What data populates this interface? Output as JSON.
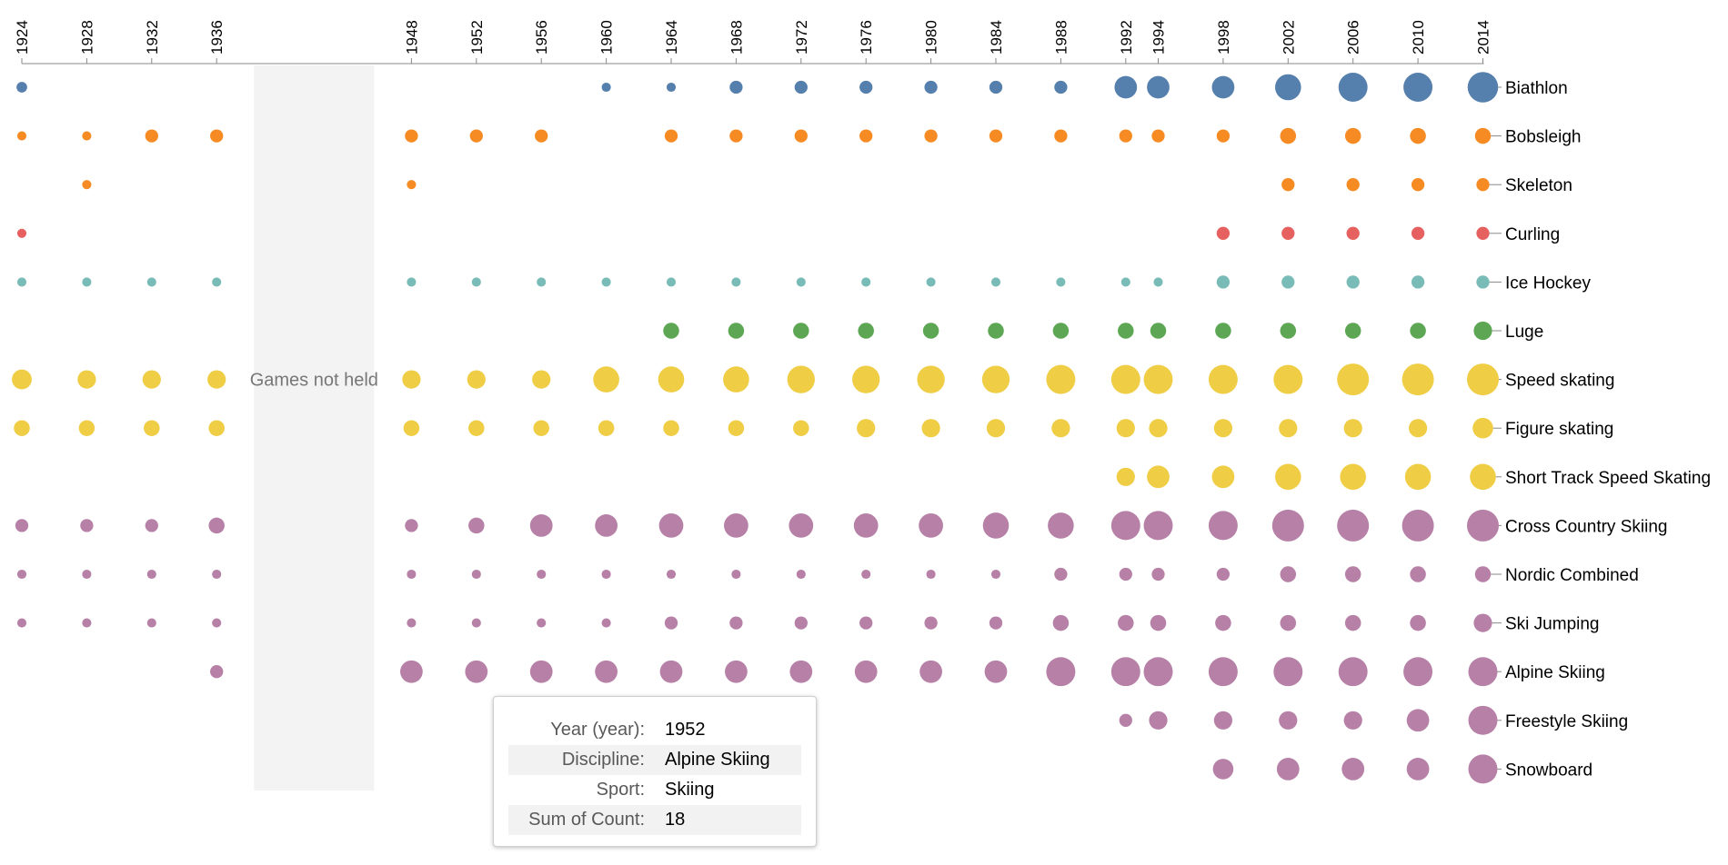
{
  "chart_data": {
    "type": "scatter",
    "years": [
      1924,
      1928,
      1932,
      1936,
      1948,
      1952,
      1956,
      1960,
      1964,
      1968,
      1972,
      1976,
      1980,
      1984,
      1988,
      1992,
      1994,
      1998,
      2002,
      2006,
      2010,
      2014
    ],
    "gap_label": "Games not held",
    "series": [
      {
        "name": "Biathlon",
        "color": "#4c78a8",
        "values": [
          4,
          null,
          null,
          null,
          null,
          null,
          null,
          3,
          3,
          6,
          6,
          6,
          6,
          6,
          6,
          18,
          18,
          18,
          24,
          30,
          30,
          33
        ]
      },
      {
        "name": "Bobsleigh",
        "color": "#f58518",
        "values": [
          3,
          3,
          6,
          6,
          6,
          6,
          6,
          null,
          6,
          6,
          6,
          6,
          6,
          6,
          6,
          6,
          6,
          6,
          9,
          9,
          9,
          9
        ]
      },
      {
        "name": "Skeleton",
        "color": "#f58518",
        "values": [
          null,
          3,
          null,
          null,
          3,
          null,
          null,
          null,
          null,
          null,
          null,
          null,
          null,
          null,
          null,
          null,
          null,
          null,
          6,
          6,
          6,
          6
        ]
      },
      {
        "name": "Curling",
        "color": "#e45756",
        "values": [
          3,
          null,
          null,
          null,
          null,
          null,
          null,
          null,
          null,
          null,
          null,
          null,
          null,
          null,
          null,
          null,
          null,
          6,
          6,
          6,
          6,
          6
        ]
      },
      {
        "name": "Ice Hockey",
        "color": "#72b7b2",
        "values": [
          3,
          3,
          3,
          3,
          3,
          3,
          3,
          3,
          3,
          3,
          3,
          3,
          3,
          3,
          3,
          3,
          3,
          6,
          6,
          6,
          6,
          6
        ]
      },
      {
        "name": "Luge",
        "color": "#54a24b",
        "values": [
          null,
          null,
          null,
          null,
          null,
          null,
          null,
          null,
          9,
          9,
          9,
          9,
          9,
          9,
          9,
          9,
          9,
          9,
          9,
          9,
          9,
          12
        ]
      },
      {
        "name": "Speed skating",
        "color": "#eeca3b",
        "values": [
          14,
          12,
          12,
          12,
          12,
          12,
          12,
          24,
          24,
          24,
          27,
          27,
          27,
          27,
          30,
          30,
          30,
          30,
          30,
          36,
          36,
          36
        ]
      },
      {
        "name": "Figure skating",
        "color": "#eeca3b",
        "values": [
          9,
          9,
          9,
          9,
          9,
          9,
          9,
          9,
          9,
          9,
          9,
          12,
          12,
          12,
          12,
          12,
          12,
          12,
          12,
          12,
          12,
          15
        ]
      },
      {
        "name": "Short Track Speed Skating",
        "color": "#eeca3b",
        "values": [
          null,
          null,
          null,
          null,
          null,
          null,
          null,
          null,
          null,
          null,
          null,
          null,
          null,
          null,
          null,
          12,
          18,
          18,
          24,
          24,
          24,
          24
        ]
      },
      {
        "name": "Cross Country Skiing",
        "color": "#b279a2",
        "values": [
          6,
          6,
          6,
          9,
          6,
          9,
          18,
          18,
          21,
          21,
          21,
          21,
          21,
          24,
          24,
          30,
          30,
          30,
          36,
          36,
          36,
          36
        ]
      },
      {
        "name": "Nordic Combined",
        "color": "#b279a2",
        "values": [
          3,
          3,
          3,
          3,
          3,
          3,
          3,
          3,
          3,
          3,
          3,
          3,
          3,
          3,
          6,
          6,
          6,
          6,
          9,
          9,
          9,
          9
        ]
      },
      {
        "name": "Ski Jumping",
        "color": "#b279a2",
        "values": [
          3,
          3,
          3,
          3,
          3,
          3,
          3,
          3,
          6,
          6,
          6,
          6,
          6,
          6,
          9,
          9,
          9,
          9,
          9,
          9,
          9,
          12
        ]
      },
      {
        "name": "Alpine Skiing",
        "color": "#b279a2",
        "values": [
          null,
          null,
          null,
          6,
          18,
          18,
          18,
          18,
          18,
          18,
          18,
          18,
          18,
          18,
          30,
          30,
          30,
          30,
          30,
          30,
          30,
          30
        ]
      },
      {
        "name": "Freestyle Skiing",
        "color": "#b279a2",
        "values": [
          null,
          null,
          null,
          null,
          null,
          null,
          null,
          null,
          null,
          null,
          null,
          null,
          null,
          null,
          null,
          6,
          12,
          12,
          12,
          12,
          18,
          30
        ]
      },
      {
        "name": "Snowboard",
        "color": "#b279a2",
        "values": [
          null,
          null,
          null,
          null,
          null,
          null,
          null,
          null,
          null,
          null,
          null,
          null,
          null,
          null,
          null,
          null,
          null,
          15,
          18,
          18,
          18,
          30
        ]
      }
    ]
  },
  "tooltip": {
    "rows": [
      {
        "key": "Year (year):",
        "value": "1952"
      },
      {
        "key": "Discipline:",
        "value": "Alpine Skiing"
      },
      {
        "key": "Sport:",
        "value": "Skiing"
      },
      {
        "key": "Sum of Count:",
        "value": "18"
      }
    ]
  }
}
